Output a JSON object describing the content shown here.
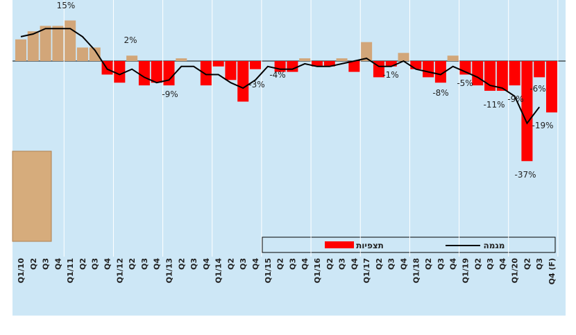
{
  "chart_data": {
    "type": "bar_line",
    "categories": [
      "Q1/10",
      "Q2",
      "Q3",
      "Q4",
      "Q1/11",
      "Q2",
      "Q3",
      "Q4",
      "Q1/12",
      "Q2",
      "Q3",
      "Q4",
      "Q1/13",
      "Q2",
      "Q3",
      "Q4",
      "Q1/14",
      "Q2",
      "Q3",
      "Q4",
      "Q1/15",
      "Q2",
      "Q3",
      "Q4",
      "Q1/16",
      "Q2",
      "Q3",
      "Q4",
      "Q1/17",
      "Q2",
      "Q3",
      "Q4",
      "Q1/18",
      "Q2",
      "Q3",
      "Q4",
      "Q1/19",
      "Q2",
      "Q3",
      "Q4",
      "Q1/20",
      "Q2",
      "Q3",
      "Q4 (F)"
    ],
    "series": [
      {
        "name": "תצפיות",
        "color": "#ff0000",
        "positive_color": "#d2a679",
        "values": [
          8,
          11,
          13,
          13,
          15,
          5,
          5,
          -5,
          -8,
          2,
          -9,
          -8,
          -9,
          1,
          0,
          -9,
          -2,
          -7,
          -15,
          -3,
          0,
          -4,
          -4,
          1,
          -2,
          -2,
          1,
          -4,
          7,
          -6,
          -2,
          3,
          -3,
          -6,
          -8,
          2,
          -5,
          -9,
          -11,
          -11,
          -9,
          -37,
          -6,
          -19
        ]
      },
      {
        "name": "מגמה",
        "color": "#000000",
        "values": [
          9,
          10,
          12,
          12,
          12,
          9,
          4,
          -3,
          -5,
          -3,
          -6,
          -8,
          -7,
          -2,
          -2,
          -5,
          -5,
          -8,
          -10,
          -7,
          -2,
          -3,
          -3,
          -1,
          -2,
          -2,
          -1,
          0,
          1,
          -2,
          -2,
          0,
          -3,
          -4,
          -5,
          -2,
          -4,
          -6,
          -9,
          -10,
          -13,
          -23,
          -17,
          null
        ]
      }
    ],
    "annotations": [
      "15%",
      "2%",
      "-9%",
      "-3%",
      "-4%",
      "-1%",
      "-8%",
      "-5%",
      "-11%",
      "-9%",
      "-6%",
      "-19%",
      "-37%"
    ]
  }
}
